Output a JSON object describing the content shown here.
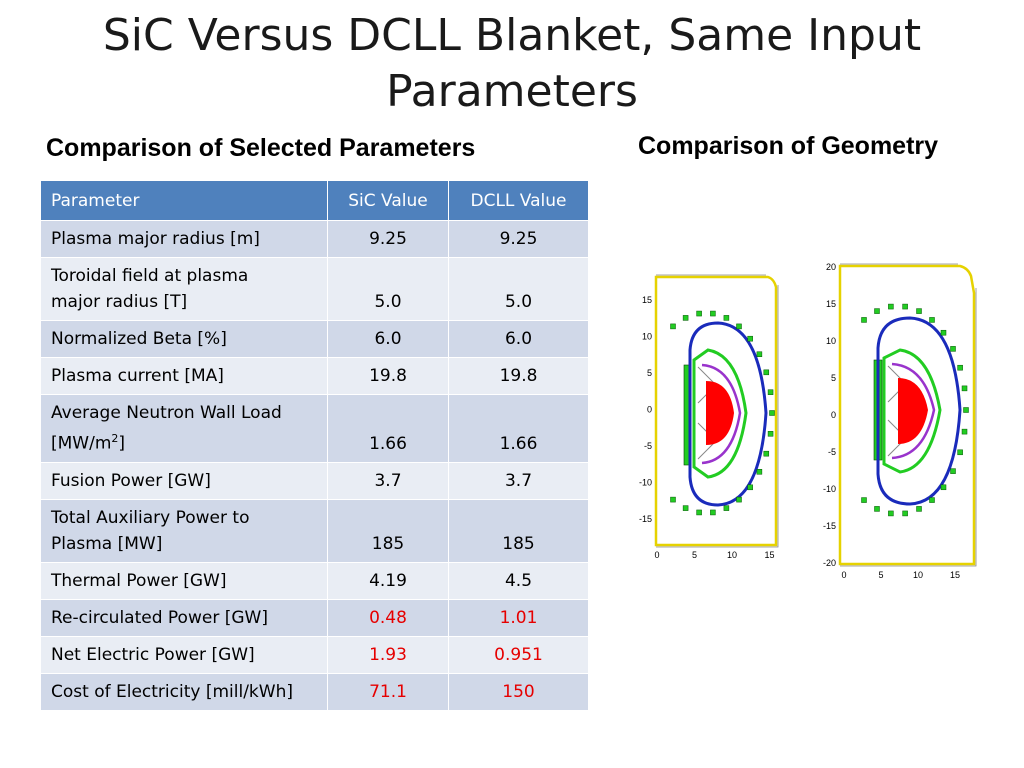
{
  "title": {
    "line1": "SiC Versus DCLL Blanket, Same Input",
    "line2": "Parameters"
  },
  "left_heading": "Comparison of Selected Parameters",
  "right_heading": "Comparison of Geometry",
  "table": {
    "headers": [
      "Parameter",
      "SiC Value",
      "DCLL Value"
    ],
    "rows": [
      {
        "param_lines": [
          "Plasma major radius [m]"
        ],
        "sic": "9.25",
        "dcll": "9.25",
        "highlight": false
      },
      {
        "param_lines": [
          "Toroidal field at plasma",
          "major radius [T]"
        ],
        "sic": "5.0",
        "dcll": "5.0",
        "highlight": false
      },
      {
        "param_lines": [
          "Normalized Beta [%]"
        ],
        "sic": "6.0",
        "dcll": "6.0",
        "highlight": false
      },
      {
        "param_lines": [
          "Plasma current [MA]"
        ],
        "sic": "19.8",
        "dcll": "19.8",
        "highlight": false
      },
      {
        "param_lines": [
          "Average Neutron Wall Load",
          "[MW/m"
        ],
        "sup": "2",
        "suffix": "]",
        "sic": "1.66",
        "dcll": "1.66",
        "highlight": false
      },
      {
        "param_lines": [
          "Fusion Power [GW]"
        ],
        "sic": "3.7",
        "dcll": "3.7",
        "highlight": false
      },
      {
        "param_lines": [
          "Total Auxiliary Power to",
          "Plasma [MW]"
        ],
        "sic": "185",
        "dcll": "185",
        "highlight": false
      },
      {
        "param_lines": [
          "Thermal Power [GW]"
        ],
        "sic": "4.19",
        "dcll": "4.5",
        "highlight": false
      },
      {
        "param_lines": [
          "Re-circulated Power  [GW]"
        ],
        "sic": "0.48",
        "dcll": "1.01",
        "highlight": true
      },
      {
        "param_lines": [
          "Net Electric Power [GW]"
        ],
        "sic": "1.93",
        "dcll": "0.951",
        "highlight": true
      },
      {
        "param_lines": [
          "Cost of Electricity [mill/kWh]"
        ],
        "sic": "71.1",
        "dcll": "150",
        "highlight": true
      }
    ]
  },
  "colors": {
    "header_bg": "#4f81bd",
    "row_odd": "#d0d8e8",
    "row_even": "#e9edf4",
    "highlight_text": "#e60000",
    "plasma": "#ff0000",
    "blanket_green": "#22cc22",
    "vessel_blue": "#1a2bbb",
    "boundary_yellow": "#e6d200"
  },
  "figures": {
    "sic": {
      "y_ticks": [
        "15",
        "10",
        "5",
        "0",
        "-5",
        "-10",
        "-15"
      ],
      "x_ticks": [
        "0",
        "5",
        "10",
        "15"
      ]
    },
    "dcll": {
      "y_ticks": [
        "20",
        "15",
        "10",
        "5",
        "0",
        "-5",
        "-10",
        "-15",
        "-20"
      ],
      "x_ticks": [
        "0",
        "5",
        "10",
        "15"
      ]
    }
  }
}
